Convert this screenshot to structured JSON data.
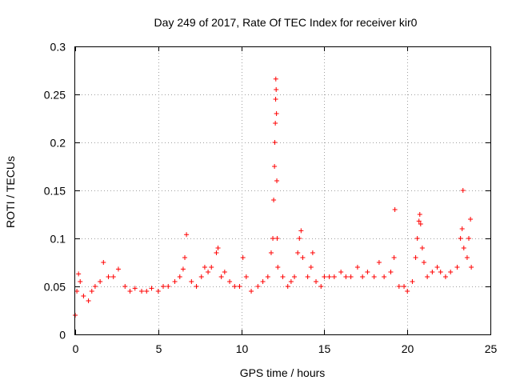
{
  "chart_data": {
    "type": "scatter",
    "title": "Day 249 of 2017, Rate Of TEC Index for receiver kir0",
    "xlabel": "GPS time / hours",
    "ylabel": "ROTI / TECUs",
    "xlim": [
      0,
      25
    ],
    "ylim": [
      0,
      0.3
    ],
    "xticks": [
      0,
      5,
      10,
      15,
      20,
      25
    ],
    "yticks": [
      0,
      0.05,
      0.1,
      0.15,
      0.2,
      0.25,
      0.3
    ],
    "xtick_labels": [
      "0",
      "5",
      "10",
      "15",
      "20",
      "25"
    ],
    "ytick_labels": [
      "0",
      "0.05",
      "0.1",
      "0.15",
      "0.2",
      "0.25",
      "0.3"
    ],
    "grid": true,
    "marker": "+",
    "color": "#ff0000",
    "series": [
      {
        "points": [
          [
            0.0,
            0.02
          ],
          [
            0.1,
            0.045
          ],
          [
            0.2,
            0.063
          ],
          [
            0.3,
            0.055
          ],
          [
            0.5,
            0.04
          ],
          [
            0.8,
            0.035
          ],
          [
            1.0,
            0.045
          ],
          [
            1.2,
            0.05
          ],
          [
            1.5,
            0.055
          ],
          [
            1.7,
            0.075
          ],
          [
            2.0,
            0.06
          ],
          [
            2.3,
            0.06
          ],
          [
            2.6,
            0.068
          ],
          [
            3.0,
            0.05
          ],
          [
            3.3,
            0.045
          ],
          [
            3.6,
            0.048
          ],
          [
            4.0,
            0.045
          ],
          [
            4.3,
            0.045
          ],
          [
            4.6,
            0.048
          ],
          [
            5.0,
            0.045
          ],
          [
            5.3,
            0.05
          ],
          [
            5.6,
            0.05
          ],
          [
            6.0,
            0.055
          ],
          [
            6.3,
            0.06
          ],
          [
            6.5,
            0.068
          ],
          [
            6.6,
            0.08
          ],
          [
            6.7,
            0.104
          ],
          [
            7.0,
            0.055
          ],
          [
            7.3,
            0.05
          ],
          [
            7.6,
            0.06
          ],
          [
            7.8,
            0.07
          ],
          [
            8.0,
            0.065
          ],
          [
            8.2,
            0.07
          ],
          [
            8.5,
            0.085
          ],
          [
            8.6,
            0.09
          ],
          [
            8.8,
            0.06
          ],
          [
            9.0,
            0.065
          ],
          [
            9.3,
            0.055
          ],
          [
            9.6,
            0.05
          ],
          [
            9.9,
            0.05
          ],
          [
            10.1,
            0.08
          ],
          [
            10.3,
            0.06
          ],
          [
            10.6,
            0.045
          ],
          [
            11.0,
            0.05
          ],
          [
            11.3,
            0.055
          ],
          [
            11.6,
            0.06
          ],
          [
            11.8,
            0.085
          ],
          [
            11.9,
            0.1
          ],
          [
            11.95,
            0.14
          ],
          [
            12.0,
            0.175
          ],
          [
            12.02,
            0.2
          ],
          [
            12.05,
            0.22
          ],
          [
            12.07,
            0.245
          ],
          [
            12.08,
            0.266
          ],
          [
            12.1,
            0.255
          ],
          [
            12.12,
            0.23
          ],
          [
            12.14,
            0.16
          ],
          [
            12.16,
            0.1
          ],
          [
            12.2,
            0.07
          ],
          [
            12.5,
            0.06
          ],
          [
            12.8,
            0.05
          ],
          [
            13.0,
            0.055
          ],
          [
            13.2,
            0.06
          ],
          [
            13.4,
            0.085
          ],
          [
            13.5,
            0.1
          ],
          [
            13.6,
            0.108
          ],
          [
            13.7,
            0.08
          ],
          [
            14.0,
            0.06
          ],
          [
            14.2,
            0.07
          ],
          [
            14.3,
            0.085
          ],
          [
            14.5,
            0.055
          ],
          [
            14.8,
            0.05
          ],
          [
            15.0,
            0.06
          ],
          [
            15.3,
            0.06
          ],
          [
            15.6,
            0.06
          ],
          [
            16.0,
            0.065
          ],
          [
            16.3,
            0.06
          ],
          [
            16.6,
            0.06
          ],
          [
            17.0,
            0.07
          ],
          [
            17.3,
            0.06
          ],
          [
            17.6,
            0.065
          ],
          [
            18.0,
            0.06
          ],
          [
            18.3,
            0.075
          ],
          [
            18.6,
            0.06
          ],
          [
            19.0,
            0.065
          ],
          [
            19.2,
            0.08
          ],
          [
            19.25,
            0.13
          ],
          [
            19.5,
            0.05
          ],
          [
            19.8,
            0.05
          ],
          [
            20.0,
            0.045
          ],
          [
            20.3,
            0.055
          ],
          [
            20.5,
            0.08
          ],
          [
            20.6,
            0.1
          ],
          [
            20.7,
            0.118
          ],
          [
            20.75,
            0.125
          ],
          [
            20.8,
            0.115
          ],
          [
            20.9,
            0.09
          ],
          [
            21.0,
            0.075
          ],
          [
            21.2,
            0.06
          ],
          [
            21.5,
            0.065
          ],
          [
            21.8,
            0.07
          ],
          [
            22.0,
            0.065
          ],
          [
            22.3,
            0.06
          ],
          [
            22.6,
            0.065
          ],
          [
            23.0,
            0.07
          ],
          [
            23.2,
            0.1
          ],
          [
            23.3,
            0.11
          ],
          [
            23.35,
            0.15
          ],
          [
            23.4,
            0.09
          ],
          [
            23.6,
            0.08
          ],
          [
            23.7,
            0.1
          ],
          [
            23.8,
            0.12
          ],
          [
            23.85,
            0.07
          ]
        ]
      }
    ]
  }
}
